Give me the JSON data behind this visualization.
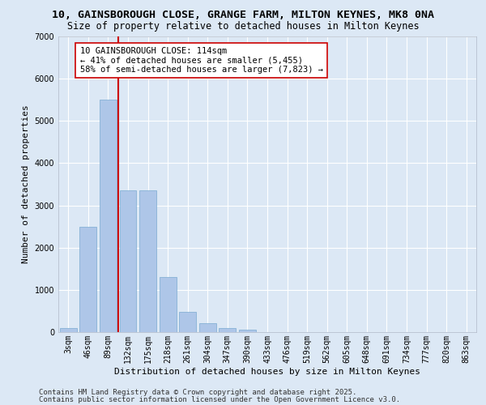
{
  "title_line1": "10, GAINSBOROUGH CLOSE, GRANGE FARM, MILTON KEYNES, MK8 0NA",
  "title_line2": "Size of property relative to detached houses in Milton Keynes",
  "xlabel": "Distribution of detached houses by size in Milton Keynes",
  "ylabel": "Number of detached properties",
  "categories": [
    "3sqm",
    "46sqm",
    "89sqm",
    "132sqm",
    "175sqm",
    "218sqm",
    "261sqm",
    "304sqm",
    "347sqm",
    "390sqm",
    "433sqm",
    "476sqm",
    "519sqm",
    "562sqm",
    "605sqm",
    "648sqm",
    "691sqm",
    "734sqm",
    "777sqm",
    "820sqm",
    "863sqm"
  ],
  "values": [
    90,
    2500,
    5500,
    3350,
    3350,
    1300,
    480,
    215,
    90,
    50,
    0,
    0,
    0,
    0,
    0,
    0,
    0,
    0,
    0,
    0,
    0
  ],
  "bar_color": "#aec6e8",
  "bar_edge_color": "#7aaad0",
  "vline_color": "#cc0000",
  "annotation_text": "10 GAINSBOROUGH CLOSE: 114sqm\n← 41% of detached houses are smaller (5,455)\n58% of semi-detached houses are larger (7,823) →",
  "annotation_box_color": "#ffffff",
  "annotation_box_edge": "#cc0000",
  "ylim": [
    0,
    7000
  ],
  "yticks": [
    0,
    1000,
    2000,
    3000,
    4000,
    5000,
    6000,
    7000
  ],
  "bg_color": "#dce8f5",
  "grid_color": "#ffffff",
  "footer_line1": "Contains HM Land Registry data © Crown copyright and database right 2025.",
  "footer_line2": "Contains public sector information licensed under the Open Government Licence v3.0.",
  "title_fontsize": 9.5,
  "subtitle_fontsize": 8.5,
  "axis_label_fontsize": 8,
  "tick_fontsize": 7,
  "annotation_fontsize": 7.5,
  "footer_fontsize": 6.5,
  "ylabel_fontsize": 8
}
